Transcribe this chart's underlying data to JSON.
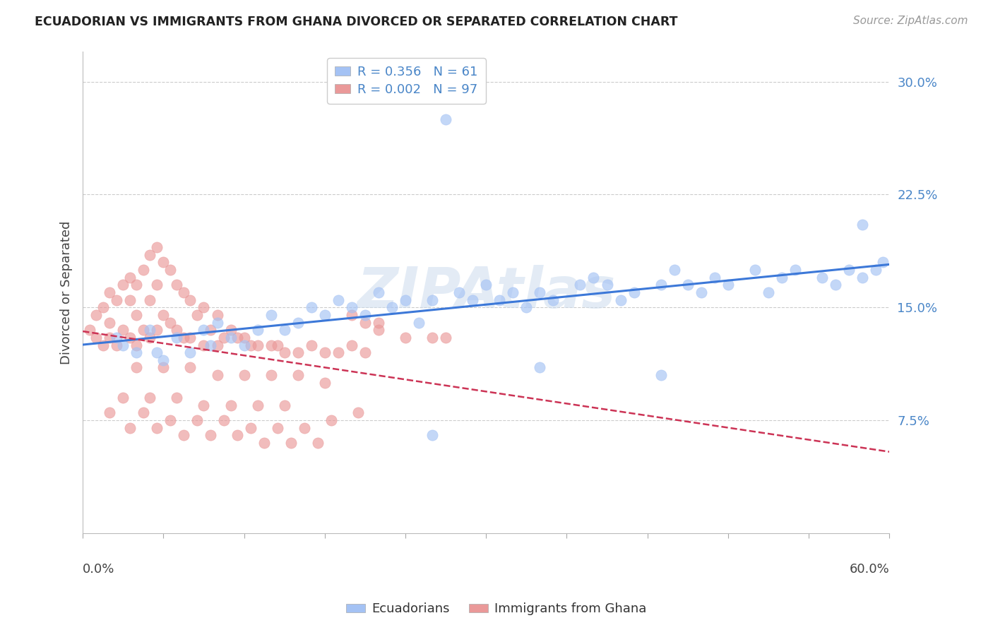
{
  "title": "ECUADORIAN VS IMMIGRANTS FROM GHANA DIVORCED OR SEPARATED CORRELATION CHART",
  "source": "Source: ZipAtlas.com",
  "ylabel": "Divorced or Separated",
  "x_min": 0.0,
  "x_max": 60.0,
  "y_min": 0.0,
  "y_max": 32.0,
  "y_ticks": [
    7.5,
    15.0,
    22.5,
    30.0
  ],
  "blue_R": 0.356,
  "blue_N": 61,
  "pink_R": 0.002,
  "pink_N": 97,
  "blue_color": "#a4c2f4",
  "pink_color": "#ea9999",
  "blue_line_color": "#3c78d8",
  "pink_line_color": "#cc3355",
  "legend_label_blue": "Ecuadorians",
  "legend_label_pink": "Immigrants from Ghana",
  "watermark": "ZIPAtlas",
  "title_fontsize": 12.5,
  "tick_fontsize": 13,
  "legend_fontsize": 13,
  "source_fontsize": 11,
  "blue_x": [
    2.5,
    3.0,
    4.0,
    5.0,
    5.5,
    6.0,
    7.0,
    8.0,
    9.0,
    9.5,
    10.0,
    11.0,
    12.0,
    13.0,
    14.0,
    15.0,
    16.0,
    17.0,
    18.0,
    19.0,
    20.0,
    21.0,
    22.0,
    23.0,
    24.0,
    25.0,
    26.0,
    27.0,
    28.0,
    29.0,
    30.0,
    31.0,
    32.0,
    33.0,
    34.0,
    35.0,
    37.0,
    38.0,
    39.0,
    40.0,
    41.0,
    43.0,
    44.0,
    45.0,
    46.0,
    47.0,
    48.0,
    50.0,
    51.0,
    52.0,
    53.0,
    55.0,
    56.0,
    57.0,
    58.0,
    59.0,
    59.5,
    26.0,
    34.0,
    43.0,
    58.0
  ],
  "blue_y": [
    13.0,
    12.5,
    12.0,
    13.5,
    12.0,
    11.5,
    13.0,
    12.0,
    13.5,
    12.5,
    14.0,
    13.0,
    12.5,
    13.5,
    14.5,
    13.5,
    14.0,
    15.0,
    14.5,
    15.5,
    15.0,
    14.5,
    16.0,
    15.0,
    15.5,
    14.0,
    15.5,
    27.5,
    16.0,
    15.5,
    16.5,
    15.5,
    16.0,
    15.0,
    16.0,
    15.5,
    16.5,
    17.0,
    16.5,
    15.5,
    16.0,
    16.5,
    17.5,
    16.5,
    16.0,
    17.0,
    16.5,
    17.5,
    16.0,
    17.0,
    17.5,
    17.0,
    16.5,
    17.5,
    17.0,
    17.5,
    18.0,
    6.5,
    11.0,
    10.5,
    20.5
  ],
  "pink_x": [
    0.5,
    1.0,
    1.0,
    1.5,
    1.5,
    2.0,
    2.0,
    2.0,
    2.5,
    2.5,
    3.0,
    3.0,
    3.5,
    3.5,
    3.5,
    4.0,
    4.0,
    4.0,
    4.5,
    4.5,
    5.0,
    5.0,
    5.0,
    5.5,
    5.5,
    5.5,
    6.0,
    6.0,
    6.5,
    6.5,
    7.0,
    7.0,
    7.5,
    7.5,
    8.0,
    8.0,
    8.5,
    9.0,
    9.0,
    9.5,
    10.0,
    10.0,
    10.5,
    11.0,
    11.5,
    12.0,
    12.5,
    13.0,
    14.0,
    14.5,
    15.0,
    16.0,
    17.0,
    18.0,
    19.0,
    20.0,
    21.0,
    4.0,
    6.0,
    8.0,
    10.0,
    12.0,
    14.0,
    16.0,
    18.0,
    3.0,
    5.0,
    7.0,
    9.0,
    11.0,
    13.0,
    15.0,
    2.0,
    4.5,
    6.5,
    8.5,
    10.5,
    12.5,
    14.5,
    16.5,
    3.5,
    5.5,
    7.5,
    9.5,
    11.5,
    13.5,
    15.5,
    17.5,
    18.5,
    20.5,
    22.0,
    24.0,
    26.0,
    27.0,
    20.0,
    21.0,
    22.0
  ],
  "pink_y": [
    13.5,
    14.5,
    13.0,
    15.0,
    12.5,
    16.0,
    14.0,
    13.0,
    15.5,
    12.5,
    16.5,
    13.5,
    17.0,
    15.5,
    13.0,
    16.5,
    14.5,
    12.5,
    17.5,
    13.5,
    18.5,
    15.5,
    13.0,
    19.0,
    16.5,
    13.5,
    18.0,
    14.5,
    17.5,
    14.0,
    16.5,
    13.5,
    16.0,
    13.0,
    15.5,
    13.0,
    14.5,
    15.0,
    12.5,
    13.5,
    14.5,
    12.5,
    13.0,
    13.5,
    13.0,
    13.0,
    12.5,
    12.5,
    12.5,
    12.5,
    12.0,
    12.0,
    12.5,
    12.0,
    12.0,
    12.5,
    12.0,
    11.0,
    11.0,
    11.0,
    10.5,
    10.5,
    10.5,
    10.5,
    10.0,
    9.0,
    9.0,
    9.0,
    8.5,
    8.5,
    8.5,
    8.5,
    8.0,
    8.0,
    7.5,
    7.5,
    7.5,
    7.0,
    7.0,
    7.0,
    7.0,
    7.0,
    6.5,
    6.5,
    6.5,
    6.0,
    6.0,
    6.0,
    7.5,
    8.0,
    13.5,
    13.0,
    13.0,
    13.0,
    14.5,
    14.0,
    14.0
  ]
}
